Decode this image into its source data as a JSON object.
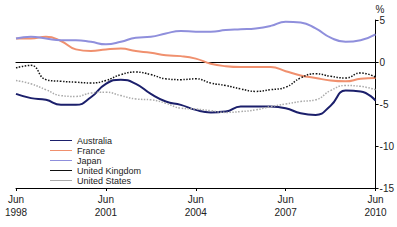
{
  "chart_data": {
    "type": "line",
    "ylabel": "%",
    "categories": [
      "Jun 1998",
      null,
      null,
      null,
      null,
      null,
      "Jun 2001",
      null,
      null,
      null,
      null,
      null,
      "Jun 2004",
      null,
      null,
      null,
      null,
      null,
      "Jun 2007",
      null,
      null,
      null,
      null,
      null,
      "Jun 2010"
    ],
    "series": [
      {
        "name": "Australia",
        "color": "#1b1f6b",
        "line_style": "solid",
        "values": [
          -3.8,
          -4.3,
          -4.5,
          -5.1,
          -5.1,
          -4.2,
          -2.6,
          -2.1,
          -2.6,
          -3.8,
          -4.7,
          -5.1,
          -5.7,
          -6.0,
          -5.9,
          -5.3,
          -5.3,
          -5.3,
          -5.5,
          -6.1,
          -6.3,
          -5.2,
          -3.4,
          -3.5,
          -4.6
        ]
      },
      {
        "name": "France",
        "color": "#f0906e",
        "line_style": "solid",
        "values": [
          2.8,
          2.8,
          3.0,
          2.5,
          1.5,
          1.3,
          1.5,
          1.6,
          1.3,
          1.1,
          0.8,
          0.7,
          0.4,
          -0.2,
          -0.5,
          -0.6,
          -0.6,
          -0.6,
          -1.1,
          -1.6,
          -1.9,
          -2.2,
          -2.3,
          -2.0,
          -1.9
        ]
      },
      {
        "name": "Japan",
        "color": "#8f8fdc",
        "line_style": "solid",
        "values": [
          2.8,
          3.0,
          2.8,
          2.6,
          2.6,
          2.4,
          2.1,
          2.4,
          2.9,
          3.0,
          3.4,
          3.7,
          3.6,
          3.6,
          3.8,
          3.9,
          4.0,
          4.3,
          4.8,
          4.7,
          4.0,
          2.9,
          2.4,
          2.6,
          3.3
        ]
      },
      {
        "name": "United Kingdom",
        "color": "#111111",
        "line_style": "dotted",
        "values": [
          -0.7,
          -0.4,
          -2.1,
          -2.3,
          -2.4,
          -2.5,
          -2.2,
          -1.5,
          -1.2,
          -1.5,
          -2.0,
          -2.1,
          -2.0,
          -2.5,
          -2.8,
          -3.2,
          -3.5,
          -3.3,
          -3.0,
          -1.9,
          -1.4,
          -1.7,
          -1.9,
          -1.3,
          -1.8
        ]
      },
      {
        "name": "United States",
        "color": "#aaaaaa",
        "line_style": "dotted",
        "values": [
          -2.2,
          -2.6,
          -3.3,
          -4.0,
          -4.1,
          -3.7,
          -3.6,
          -4.0,
          -4.4,
          -4.5,
          -4.9,
          -5.5,
          -5.6,
          -5.8,
          -6.0,
          -5.9,
          -5.7,
          -5.3,
          -5.0,
          -4.7,
          -4.5,
          -3.4,
          -2.8,
          -2.9,
          -3.3
        ]
      }
    ],
    "ylim": [
      -15,
      5
    ],
    "yticks": [
      -15,
      -10,
      -5,
      0,
      5
    ],
    "grid": false,
    "legend": "lower-left"
  }
}
